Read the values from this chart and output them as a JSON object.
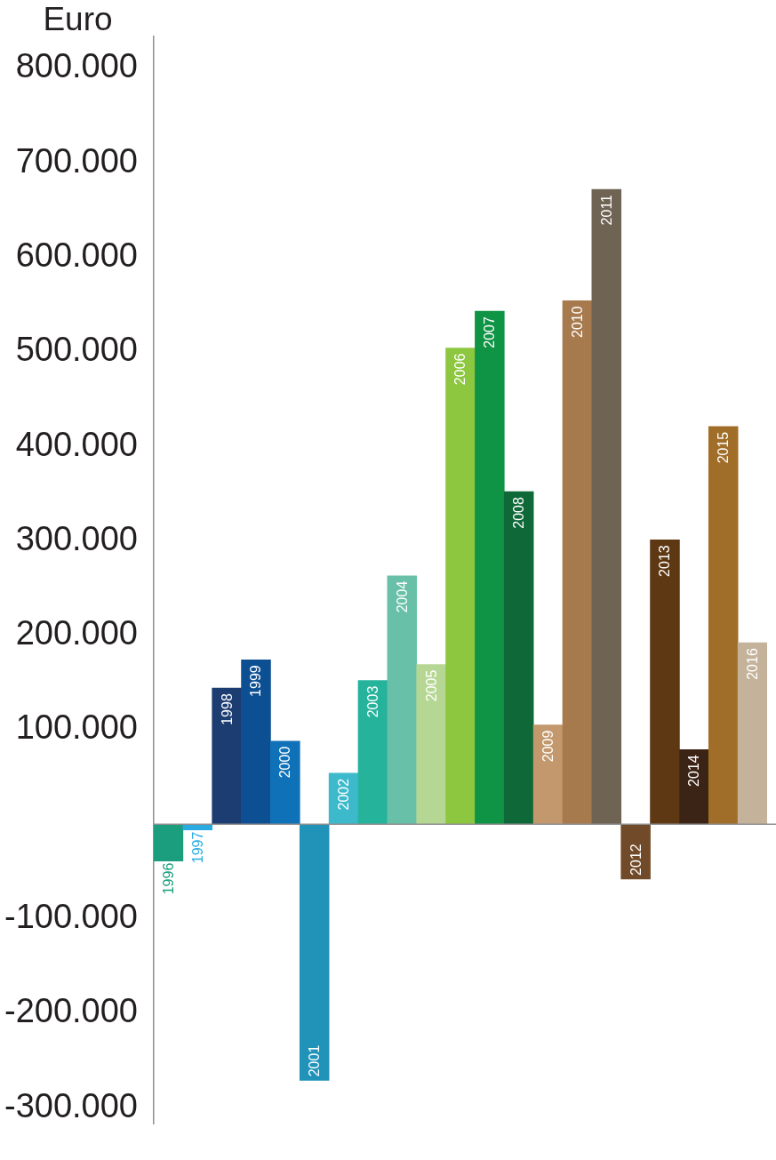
{
  "chart_data": {
    "type": "bar",
    "ylabel": "Euro",
    "categories": [
      "1996",
      "1997",
      "1998",
      "1999",
      "2000",
      "2001",
      "2002",
      "2003",
      "2004",
      "2005",
      "2006",
      "2007",
      "2008",
      "2009",
      "2010",
      "2011",
      "2012",
      "2013",
      "2014",
      "2015",
      "2016"
    ],
    "values": [
      -39000,
      -6000,
      144000,
      174000,
      88000,
      -271000,
      54000,
      152000,
      263000,
      169000,
      504000,
      543000,
      352000,
      105000,
      554000,
      672000,
      -58000,
      301000,
      79000,
      421000,
      192000
    ],
    "colors": [
      "#1a9e7e",
      "#29abe2",
      "#1c3d72",
      "#0c4f92",
      "#0f71b8",
      "#2193b9",
      "#3cb9cb",
      "#25b39b",
      "#69c0a8",
      "#b6d794",
      "#8dc63f",
      "#0e9444",
      "#0e6838",
      "#c3986c",
      "#a77a4e",
      "#6f6354",
      "#714b29",
      "#5e3813",
      "#3b2315",
      "#a06e28",
      "#c4b39a"
    ],
    "ylim": [
      -317000,
      834000
    ],
    "yticks": [
      {
        "value": 800000,
        "label": "800.000"
      },
      {
        "value": 700000,
        "label": "700.000"
      },
      {
        "value": 600000,
        "label": "600.000"
      },
      {
        "value": 500000,
        "label": "500.000"
      },
      {
        "value": 400000,
        "label": "400.000"
      },
      {
        "value": 300000,
        "label": "300.000"
      },
      {
        "value": 200000,
        "label": "200.000"
      },
      {
        "value": 100000,
        "label": "100.000"
      },
      {
        "value": -100000,
        "label": "-100.000"
      },
      {
        "value": -200000,
        "label": "-200.000"
      },
      {
        "value": -300000,
        "label": "-300.000"
      }
    ]
  }
}
